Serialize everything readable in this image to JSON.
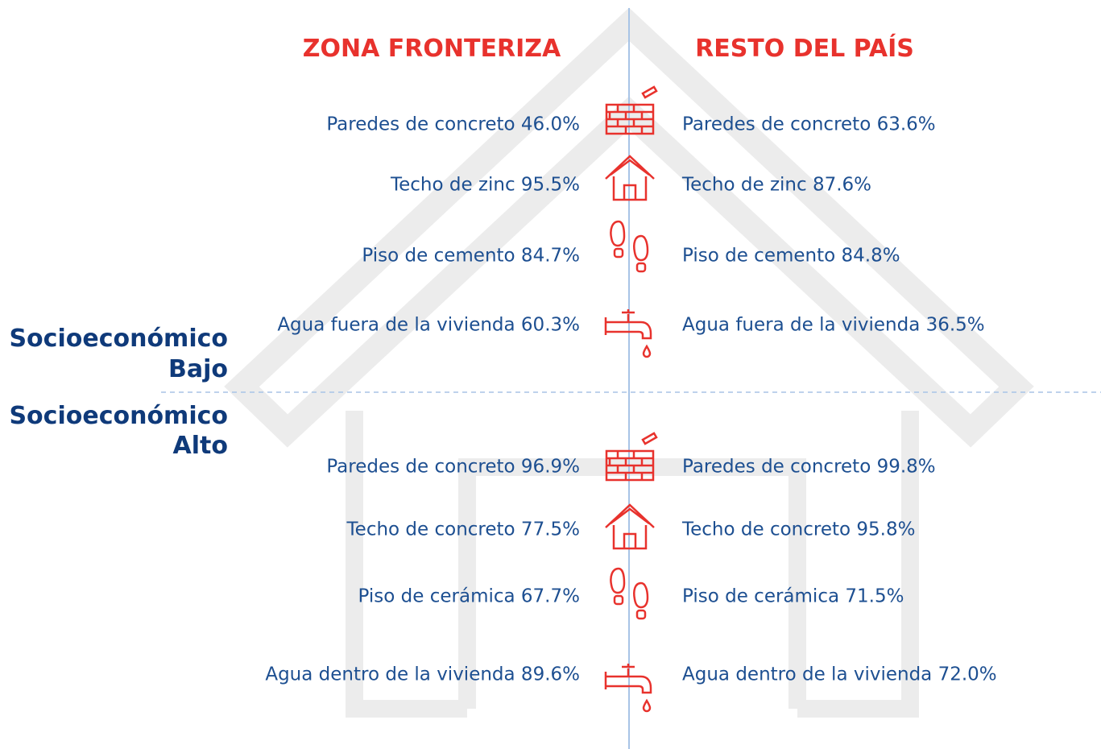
{
  "headers": {
    "left": "ZONA FRONTERIZA",
    "right": "RESTO DEL PAÍS"
  },
  "sections": [
    {
      "label": [
        "Socioeconómico",
        "Bajo"
      ],
      "rows": [
        {
          "left": "Paredes de concreto 46.0%",
          "right": "Paredes de concreto 63.6%"
        },
        {
          "left": "Techo de zinc 95.5%",
          "right": "Techo de zinc 87.6%"
        },
        {
          "left": "Piso de cemento 84.7%",
          "right": "Piso de cemento 84.8%"
        },
        {
          "left": "Agua fuera de la vivienda 60.3%",
          "right": "Agua fuera de la vivienda 36.5%"
        }
      ]
    },
    {
      "label": [
        "Socioeconómico",
        "Alto"
      ],
      "rows": [
        {
          "left": "Paredes de concreto 96.9%",
          "right": "Paredes de concreto 99.8%"
        },
        {
          "left": "Techo de concreto 77.5%",
          "right": "Techo de concreto 95.8%"
        },
        {
          "left": "Piso de cerámica 67.7%",
          "right": "Piso de cerámica 71.5%"
        },
        {
          "left": "Agua dentro de la vivienda 89.6%",
          "right": "Agua dentro de la vivienda 72.0%"
        }
      ]
    }
  ]
}
